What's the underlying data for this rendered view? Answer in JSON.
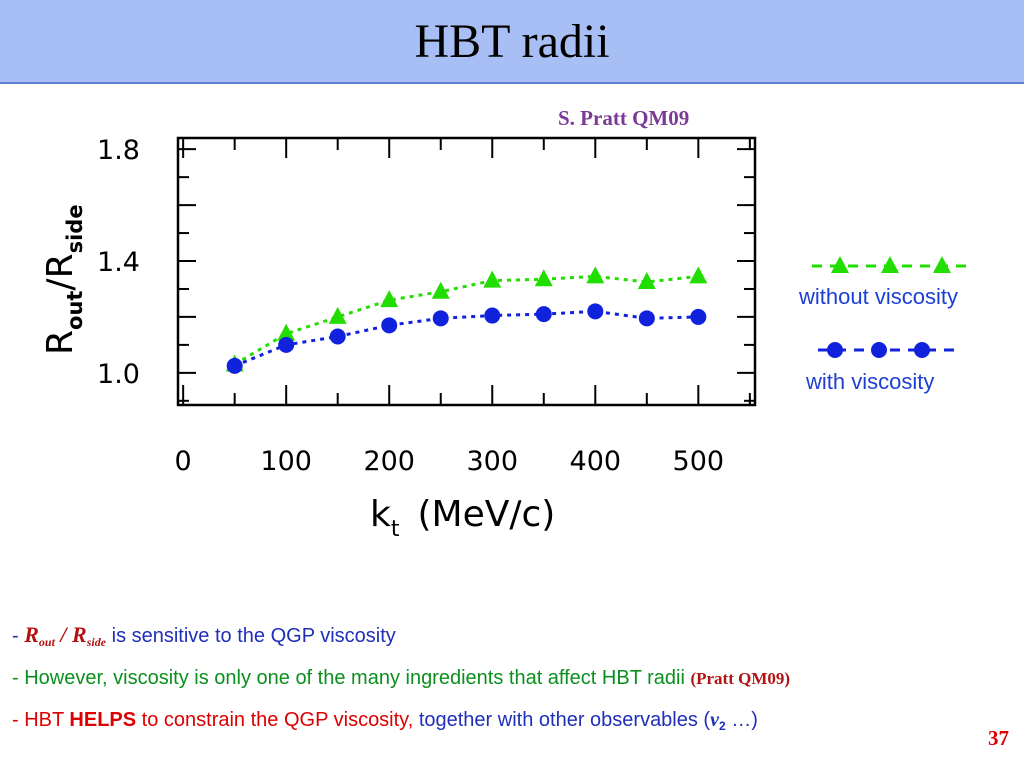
{
  "slide": {
    "title": "HBT radii",
    "citation": "S. Pratt QM09",
    "page_number": "37"
  },
  "legend": {
    "green_label": "without viscosity",
    "blue_label": "with viscosity"
  },
  "bullets": {
    "b1_dash": "- ",
    "b1_r": "R",
    "b1_out": "out",
    "b1_slash": " / R",
    "b1_side": "side",
    "b1_text": "  is sensitive to  the QGP viscosity",
    "b2_text": "- However, viscosity is only one of the many ingredients that affect HBT radii ",
    "b2_cite": "(Pratt QM09)",
    "b3_pre": "- HBT ",
    "b3_bold": "HELPS",
    "b3_mid": " to constrain the QGP viscosity,",
    "b3_blue": " together with other observables  (",
    "b3_v": "v",
    "b3_v_sub": "2",
    "b3_end": " …)"
  },
  "colors": {
    "title_bg": "#a8bff5",
    "without_viscosity": "#22dd00",
    "with_viscosity": "#1122dd"
  },
  "chart_data": {
    "type": "line",
    "x_tick_labels": [
      "0",
      "100",
      "200",
      "300",
      "400",
      "500"
    ],
    "y_tick_labels": [
      "1.0",
      "1.4",
      "1.8"
    ],
    "xlim": [
      -5,
      555
    ],
    "ylim": [
      0.885,
      1.84
    ],
    "xlabel_main": "k",
    "xlabel_sub": "t",
    "xlabel_units": "(MeV/c)",
    "ylabel_r1": "R",
    "ylabel_sub1": "out",
    "ylabel_r2": "R",
    "ylabel_sub2": "side",
    "x": [
      50,
      100,
      150,
      200,
      250,
      300,
      350,
      400,
      450,
      500
    ],
    "series": [
      {
        "name": "without viscosity",
        "color": "#22dd00",
        "marker": "triangle",
        "values": [
          1.03,
          1.14,
          1.2,
          1.26,
          1.29,
          1.33,
          1.335,
          1.345,
          1.325,
          1.345
        ]
      },
      {
        "name": "with viscosity",
        "color": "#1122dd",
        "marker": "circle",
        "values": [
          1.025,
          1.1,
          1.13,
          1.17,
          1.195,
          1.205,
          1.21,
          1.22,
          1.195,
          1.2
        ]
      }
    ]
  }
}
